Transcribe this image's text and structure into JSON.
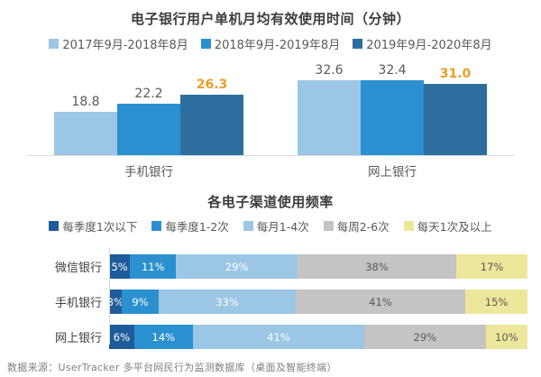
{
  "chart_data": [
    {
      "type": "bar",
      "title": "电子银行用户单机月均有效使用时间（分钟）",
      "categories": [
        "手机银行",
        "网上银行"
      ],
      "series": [
        {
          "name": "2017年9月-2018年8月",
          "color": "#9cc6e5",
          "values": [
            18.8,
            32.6
          ],
          "labels": [
            "18.8",
            "32.6"
          ],
          "label_color": "#595959",
          "label_bold": false
        },
        {
          "name": "2018年9月-2019年8月",
          "color": "#2b90cf",
          "values": [
            22.2,
            32.4
          ],
          "labels": [
            "22.2",
            "32.4"
          ],
          "label_color": "#595959",
          "label_bold": false
        },
        {
          "name": "2019年9月-2020年8月",
          "color": "#2c6f9f",
          "values": [
            26.3,
            31.0
          ],
          "labels": [
            "26.3",
            "31.0"
          ],
          "label_color": "#ef9d26",
          "label_bold": true
        }
      ],
      "ylim": [
        0,
        35
      ],
      "grid": false,
      "legend_position": "top",
      "unit": "分钟"
    },
    {
      "type": "stacked-bar-horizontal",
      "title": "各电子渠道使用频率",
      "categories": [
        "微信银行",
        "手机银行",
        "网上银行"
      ],
      "series": [
        {
          "name": "每季度1次以下",
          "color": "#1e5c99",
          "text_color": "#ffffff",
          "values": [
            5,
            3,
            6
          ]
        },
        {
          "name": "每季度1-2次",
          "color": "#2b90cf",
          "text_color": "#ffffff",
          "values": [
            11,
            9,
            14
          ]
        },
        {
          "name": "每月1-4次",
          "color": "#9cc6e5",
          "text_color": "#ffffff",
          "values": [
            29,
            33,
            41
          ]
        },
        {
          "name": "每周2-6次",
          "color": "#c4c4c4",
          "text_color": "#595959",
          "values": [
            38,
            41,
            29
          ]
        },
        {
          "name": "每天1次及以上",
          "color": "#ede79b",
          "text_color": "#595959",
          "values": [
            17,
            15,
            10
          ]
        }
      ],
      "unit": "%",
      "xlim": [
        0,
        100
      ],
      "legend_position": "top"
    }
  ],
  "footer": {
    "source_text": "数据来源：UserTracker  多平台网民行为监测数据库（桌面及智能终端）"
  }
}
